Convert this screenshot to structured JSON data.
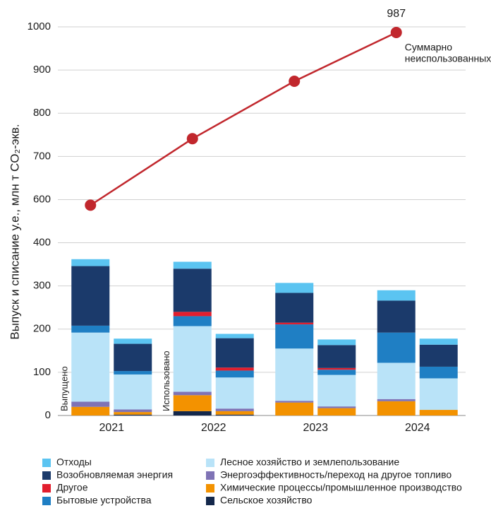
{
  "chart_data": {
    "type": "stacked-bar-line",
    "y_label": "Выпуск и списание у.е., млн т CO₂-экв.",
    "categories": [
      "2021",
      "2022",
      "2023",
      "2024"
    ],
    "ylim": [
      0,
      1000
    ],
    "yticks": [
      0,
      100,
      200,
      300,
      400,
      600,
      700,
      800,
      900,
      1000
    ],
    "axis_break": [
      400,
      600
    ],
    "grid": true,
    "bar_labels": {
      "issued": "Выпущено",
      "used": "Использовано"
    },
    "series": [
      {
        "name": "Сельское хозяйство",
        "color": "#14284b",
        "issued": [
          0,
          10,
          0,
          0
        ],
        "used": [
          2,
          2,
          0,
          0
        ]
      },
      {
        "name": "Химические процессы/промышленное производство",
        "color": "#f39200",
        "issued": [
          20,
          37,
          30,
          33
        ],
        "used": [
          6,
          8,
          17,
          13
        ]
      },
      {
        "name": "Энергоэффективность/переход на другое топливо",
        "color": "#7f73b5",
        "issued": [
          12,
          8,
          4,
          5
        ],
        "used": [
          6,
          6,
          4,
          0
        ]
      },
      {
        "name": "Лесное хозяйство и землепользование",
        "color": "#b9e3f8",
        "issued": [
          160,
          152,
          121,
          84
        ],
        "used": [
          81,
          72,
          73,
          73
        ]
      },
      {
        "name": "Бытовые устройства",
        "color": "#1f7fc4",
        "issued": [
          16,
          23,
          56,
          70
        ],
        "used": [
          8,
          16,
          12,
          27
        ]
      },
      {
        "name": "Другое",
        "color": "#e21e2d",
        "issued": [
          0,
          10,
          4,
          0
        ],
        "used": [
          0,
          7,
          4,
          0
        ]
      },
      {
        "name": "Возобновляемая энергия",
        "color": "#1b3a6b",
        "issued": [
          138,
          100,
          69,
          74
        ],
        "used": [
          63,
          68,
          53,
          51
        ]
      },
      {
        "name": "Отходы",
        "color": "#5bc4f1",
        "issued": [
          16,
          16,
          23,
          24
        ],
        "used": [
          12,
          10,
          13,
          14
        ]
      }
    ],
    "line": {
      "label_lines": [
        "Суммарно",
        "неиспользованных"
      ],
      "color": "#c1272d",
      "values": [
        574,
        741,
        874,
        987
      ]
    }
  }
}
